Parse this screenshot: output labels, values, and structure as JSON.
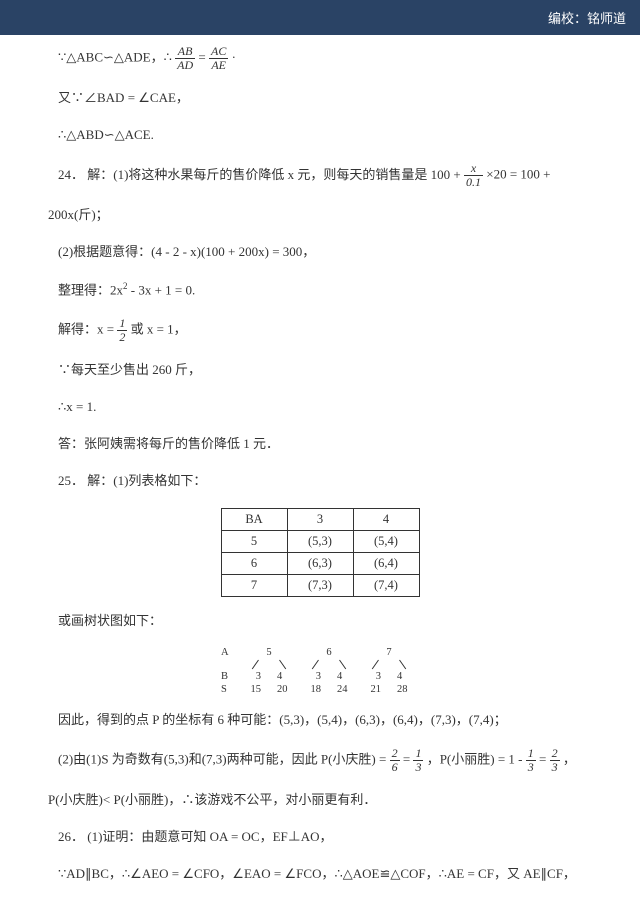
{
  "header": {
    "credit": "编校：铭师道"
  },
  "p1": "∵△ABC∽△ADE，∴",
  "frac1": {
    "num": "AB",
    "den": "AD"
  },
  "p1_eq": " = ",
  "frac2": {
    "num": "AC",
    "den": "AE"
  },
  "p1_end": "·",
  "p2": "又∵∠BAD = ∠CAE，",
  "p3": "∴△ABD∽△ACE.",
  "q24a": "24．  解：(1)将这种水果每斤的售价降低 x 元，则每天的销售量是 100 + ",
  "frac3": {
    "num": "x",
    "den": "0.1"
  },
  "q24a_end": "×20 = 100 +",
  "q24b": "200x(斤)；",
  "q24c": "(2)根据题意得：(4 - 2 - x)(100 + 200x) = 300，",
  "q24d_a": "整理得：2x",
  "q24d_sup": "2",
  "q24d_b": " - 3x + 1 = 0.",
  "q24e_a": "解得：x = ",
  "frac4": {
    "num": "1",
    "den": "2"
  },
  "q24e_b": "或 x = 1，",
  "q24f": "∵每天至少售出 260 斤，",
  "q24g": "∴x = 1.",
  "q24h": "答：张阿姨需将每斤的售价降低 1 元．",
  "q25a": "25．  解：(1)列表格如下：",
  "table": {
    "rows": [
      [
        "BA",
        "3",
        "4"
      ],
      [
        "5",
        "(5,3)",
        "(5,4)"
      ],
      [
        "6",
        "(6,3)",
        "(6,4)"
      ],
      [
        "7",
        "(7,3)",
        "(7,4)"
      ]
    ]
  },
  "q25tree": "或画树状图如下：",
  "tree": {
    "labels": [
      "A",
      "B",
      "S"
    ],
    "a": [
      "5",
      "6",
      "7"
    ],
    "b": [
      [
        "3",
        "4"
      ],
      [
        "3",
        "4"
      ],
      [
        "3",
        "4"
      ]
    ],
    "s": [
      [
        "15",
        "20"
      ],
      [
        "18",
        "24"
      ],
      [
        "21",
        "28"
      ]
    ]
  },
  "q25b": "因此，得到的点 P 的坐标有 6 种可能：(5,3)，(5,4)，(6,3)，(6,4)，(7,3)，(7,4)；",
  "q25c_a": "(2)由(1)S 为奇数有(5,3)和(7,3)两种可能，因此 P(小庆胜) = ",
  "frac5": {
    "num": "2",
    "den": "6"
  },
  "q25c_eq1": " = ",
  "frac6": {
    "num": "1",
    "den": "3"
  },
  "q25c_mid": "，P(小丽胜) = 1 - ",
  "frac7": {
    "num": "1",
    "den": "3"
  },
  "q25c_eq2": " = ",
  "frac8": {
    "num": "2",
    "den": "3"
  },
  "q25c_end": "，",
  "q25d": "P(小庆胜)< P(小丽胜)，∴该游戏不公平，对小丽更有利．",
  "q26a": "26．  (1)证明：由题意可知 OA = OC，EF⊥AO，",
  "q26b": "∵AD∥BC，∴∠AEO = ∠CFO，∠EAO = ∠FCO，∴△AOE≌△COF，∴AE = CF，又 AE∥CF，"
}
